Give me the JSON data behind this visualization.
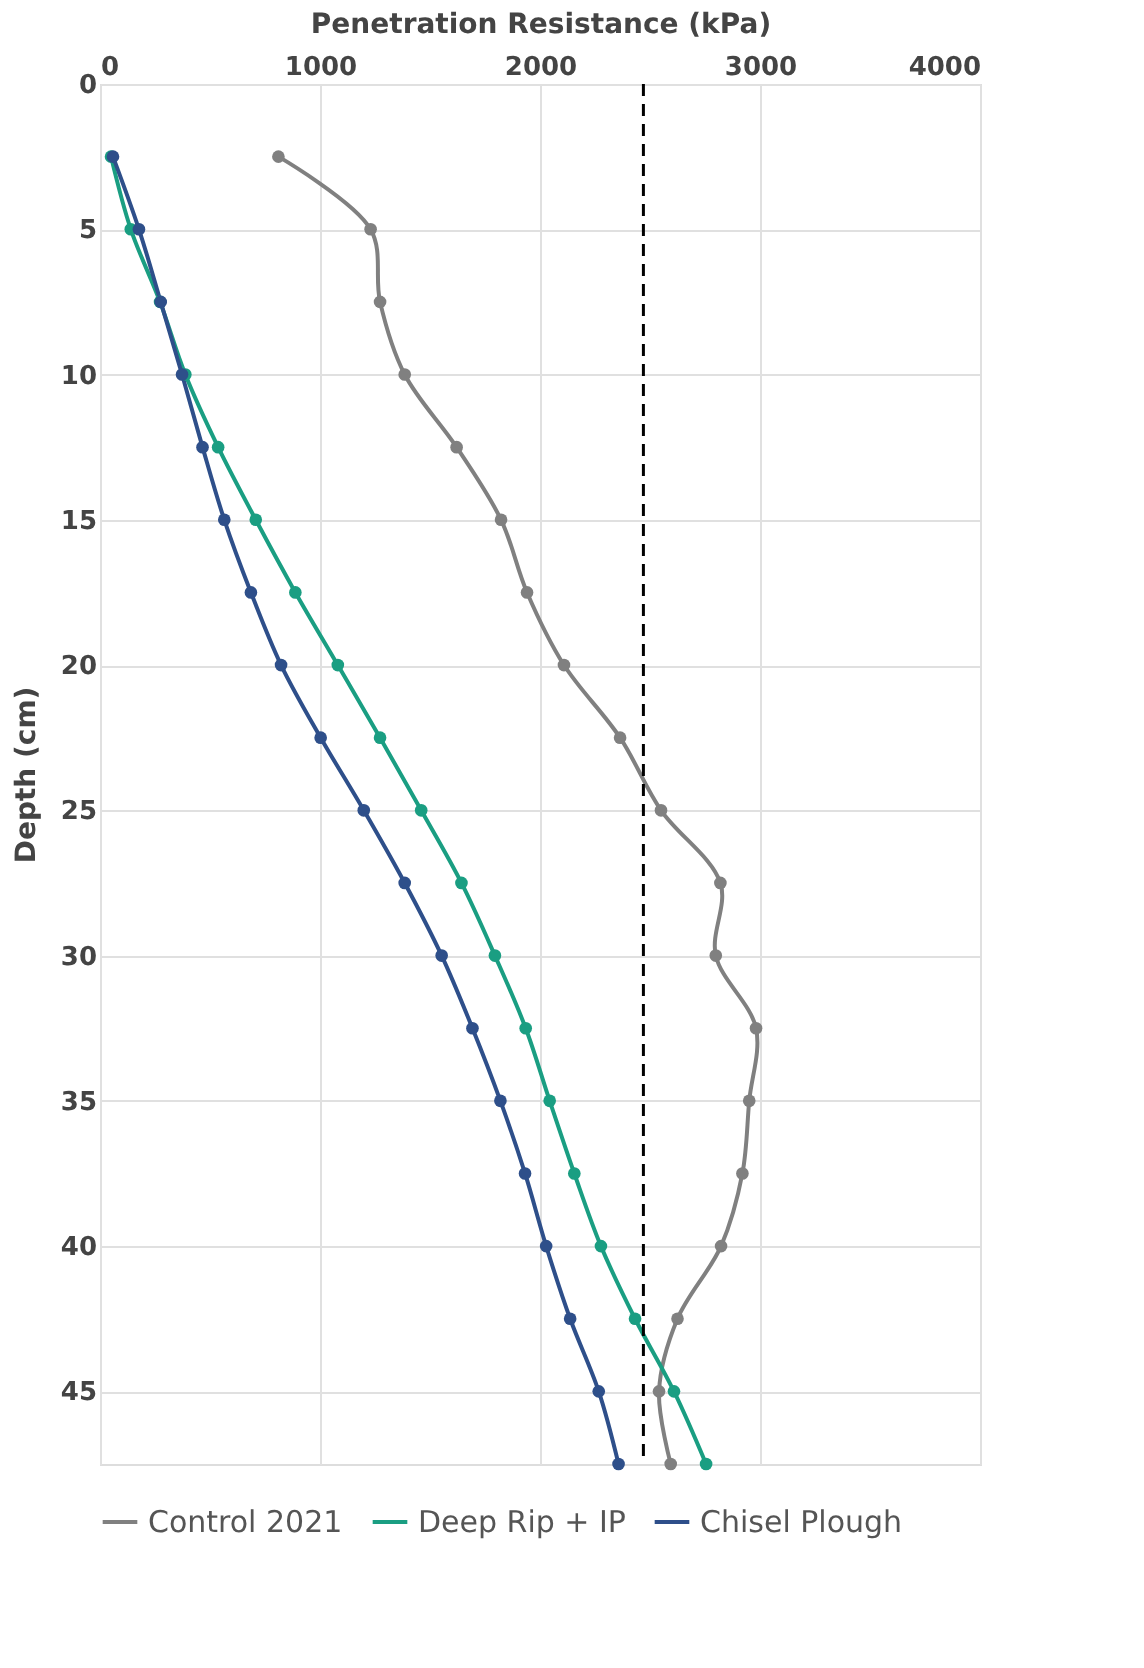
{
  "chart_data": {
    "type": "line",
    "xlabel": "Penetration Resistance (kPa)",
    "ylabel": "Depth (cm)",
    "xlim": [
      0,
      4000
    ],
    "xticks": [
      0,
      1000,
      2000,
      3000,
      4000
    ],
    "ylim": [
      47.5,
      0
    ],
    "yticks": [
      0,
      5,
      10,
      15,
      20,
      25,
      30,
      35,
      40,
      45
    ],
    "grid": true,
    "legend": "bottom",
    "marker": "circle",
    "line_style": "solid",
    "ref_lines": [
      {
        "axis": "x",
        "value": 2470,
        "color": "#000000",
        "line_style": "dashed"
      }
    ],
    "series": [
      {
        "name": "Control 2021",
        "color": "#808080",
        "x": [
          811,
          1230,
          1273,
          1385,
          1621,
          1823,
          1941,
          2109,
          2364,
          2550,
          2820,
          2799,
          2982,
          2951,
          2920,
          2823,
          2625,
          2541,
          2594
        ],
        "values": [
          2.5,
          5,
          7.5,
          10,
          12.5,
          15,
          17.5,
          20,
          22.5,
          25,
          27.5,
          30,
          32.5,
          35,
          37.5,
          40,
          42.5,
          45,
          47.5
        ]
      },
      {
        "name": "Deep Rip + IP",
        "color": "#1a9e82",
        "x": [
          50,
          140,
          273,
          388,
          537,
          708,
          888,
          1081,
          1273,
          1460,
          1643,
          1795,
          1935,
          2044,
          2156,
          2277,
          2432,
          2609,
          2755
        ],
        "values": [
          2.5,
          5,
          7.5,
          10,
          12.5,
          15,
          17.5,
          20,
          22.5,
          25,
          27.5,
          30,
          32.5,
          35,
          37.5,
          40,
          42.5,
          45,
          47.5
        ]
      },
      {
        "name": "Chisel Plough",
        "color": "#2e4f8a",
        "x": [
          59,
          177,
          276,
          373,
          466,
          565,
          686,
          823,
          1003,
          1199,
          1385,
          1553,
          1693,
          1820,
          1932,
          2028,
          2137,
          2267,
          2357
        ],
        "values": [
          2.5,
          5,
          7.5,
          10,
          12.5,
          15,
          17.5,
          20,
          22.5,
          25,
          27.5,
          30,
          32.5,
          35,
          37.5,
          40,
          42.5,
          45,
          47.5
        ]
      }
    ]
  }
}
